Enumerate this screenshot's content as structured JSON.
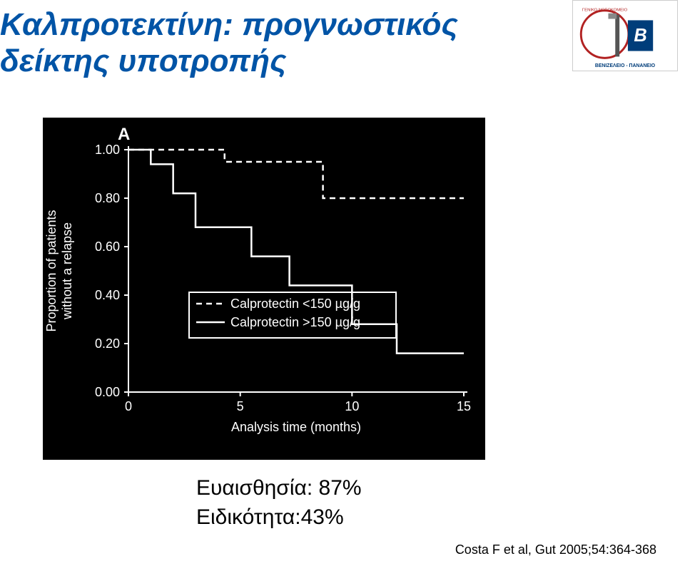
{
  "title_line1": "Καλπροτεκτίνη: προγνωστικός",
  "title_line2": "δείκτης υποτροπής",
  "stats": {
    "sensitivity_label": "Ευαισθησία:",
    "sensitivity_value": "87%",
    "specificity_label": "Ειδικότητα:",
    "specificity_value": "43%"
  },
  "citation": "Costa F et al, Gut 2005;54:364-368",
  "chart": {
    "type": "kaplan-meier",
    "panel_label": "A",
    "background_color": "#000000",
    "line_color": "#ffffff",
    "text_color": "#ffffff",
    "y_label": "Proportion of patients\nwithout a relapse",
    "x_label": "Analysis time (months)",
    "y_ticks": [
      0.0,
      0.2,
      0.4,
      0.6,
      0.8,
      1.0
    ],
    "x_ticks": [
      0,
      5,
      10,
      15
    ],
    "xlim": [
      0,
      15
    ],
    "ylim": [
      0.0,
      1.0
    ],
    "tick_fontsize": 18,
    "axis_title_fontsize": 18,
    "legend_fontsize": 18,
    "line_width": 2.5,
    "dash_pattern": "8 6",
    "legend": {
      "items": [
        {
          "style": "dashed",
          "label": "Calprotectin <150 µg/g"
        },
        {
          "style": "solid",
          "label": "Calprotectin >150 µg/g"
        }
      ],
      "box": true
    },
    "series": [
      {
        "name": "low_calprotectin",
        "style": "dashed",
        "points": [
          {
            "x": 0,
            "y": 1.0
          },
          {
            "x": 4.3,
            "y": 1.0
          },
          {
            "x": 4.3,
            "y": 0.95
          },
          {
            "x": 8.7,
            "y": 0.95
          },
          {
            "x": 8.7,
            "y": 0.8
          },
          {
            "x": 15,
            "y": 0.8
          }
        ]
      },
      {
        "name": "high_calprotectin",
        "style": "solid",
        "points": [
          {
            "x": 0,
            "y": 1.0
          },
          {
            "x": 1.0,
            "y": 1.0
          },
          {
            "x": 1.0,
            "y": 0.94
          },
          {
            "x": 2.0,
            "y": 0.94
          },
          {
            "x": 2.0,
            "y": 0.82
          },
          {
            "x": 3.0,
            "y": 0.82
          },
          {
            "x": 3.0,
            "y": 0.68
          },
          {
            "x": 5.5,
            "y": 0.68
          },
          {
            "x": 5.5,
            "y": 0.56
          },
          {
            "x": 7.2,
            "y": 0.56
          },
          {
            "x": 7.2,
            "y": 0.44
          },
          {
            "x": 10.0,
            "y": 0.44
          },
          {
            "x": 10.0,
            "y": 0.28
          },
          {
            "x": 12.0,
            "y": 0.28
          },
          {
            "x": 12.0,
            "y": 0.16
          },
          {
            "x": 15.0,
            "y": 0.16
          }
        ]
      }
    ]
  }
}
